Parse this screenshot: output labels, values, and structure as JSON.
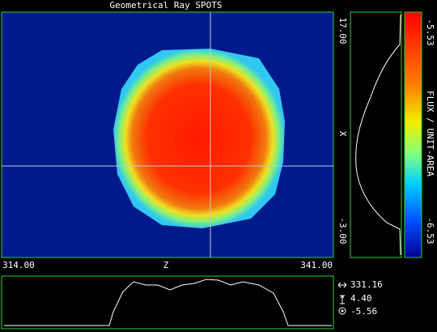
{
  "title": "Geometrical Ray SPOTS",
  "horizontal_axis": {
    "min": "314.00",
    "label": "Z",
    "max": "341.00"
  },
  "vertical_axis": {
    "max": "17.00",
    "label": "X",
    "min": "-3.00"
  },
  "colorbar": {
    "max": "-5.53",
    "label": "FLUX / UNIT-AREA",
    "min": "-6.53"
  },
  "readout": {
    "z": "331.16",
    "x": "4.40",
    "flux": "-5.56"
  }
}
